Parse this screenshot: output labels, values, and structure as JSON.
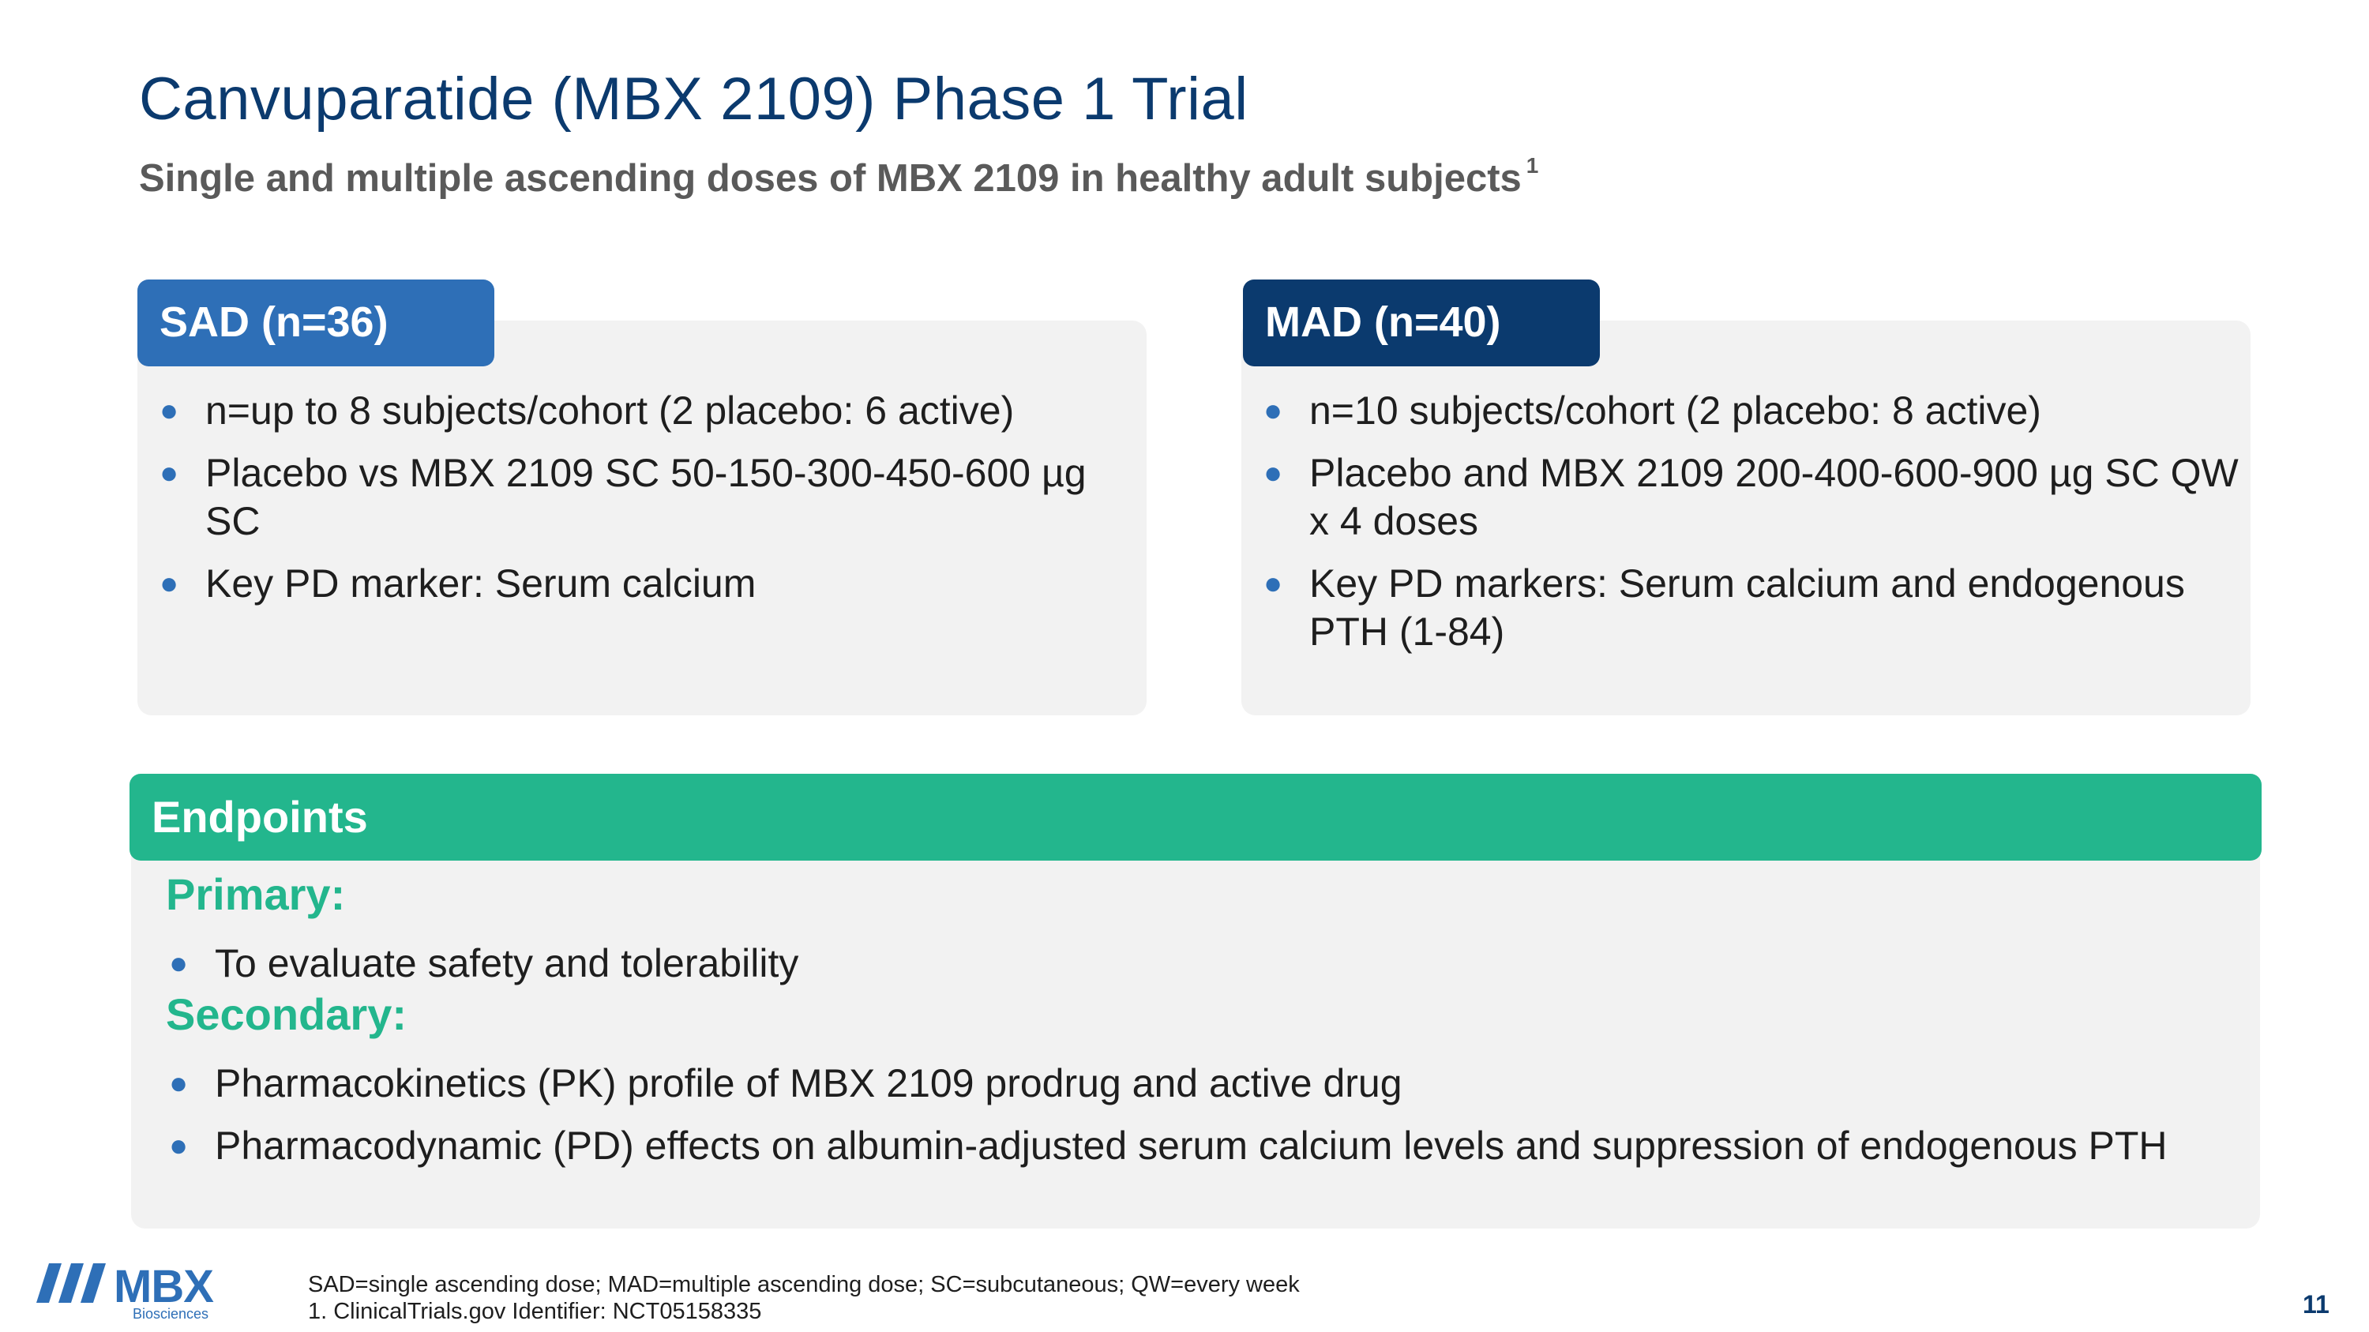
{
  "header": {
    "title": "Canvuparatide (MBX 2109) Phase 1 Trial",
    "subtitle": "Single and multiple ascending doses of MBX 2109 in healthy adult subjects",
    "subtitle_footnote": "1"
  },
  "sad": {
    "label": "SAD (n=36)",
    "items": [
      "n=up to 8 subjects/cohort (2 placebo: 6 active)",
      "Placebo vs MBX 2109 SC 50-150-300-450-600 µg SC",
      "Key PD marker: Serum calcium"
    ]
  },
  "mad": {
    "label": "MAD (n=40)",
    "items": [
      "n=10 subjects/cohort (2 placebo: 8 active)",
      "Placebo and MBX 2109 200-400-600-900 µg SC QW x 4 doses",
      "Key PD markers: Serum calcium and endogenous PTH (1-84)"
    ]
  },
  "endpoints": {
    "label": "Endpoints",
    "primary": {
      "heading": "Primary:",
      "items": [
        "To evaluate safety and tolerability"
      ]
    },
    "secondary": {
      "heading": "Secondary:",
      "items": [
        "Pharmacokinetics (PK) profile of MBX 2109 prodrug and active drug",
        "Pharmacodynamic (PD) effects on albumin-adjusted serum calcium levels and suppression of endogenous PTH"
      ]
    }
  },
  "footer": {
    "logo_text": "MBX",
    "logo_sub": "Biosciences",
    "footnote_1": "SAD=single ascending dose; MAD=multiple ascending dose; SC=subcutaneous; QW=every week",
    "footnote_2": "1. ClinicalTrials.gov Identifier: NCT05158335",
    "page_number": "11"
  },
  "colors": {
    "navy": "#0b3a6e",
    "blue": "#2e6fb7",
    "green": "#23b68d",
    "panel": "#f2f2f2"
  }
}
